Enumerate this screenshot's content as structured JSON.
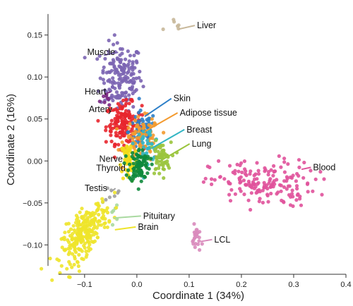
{
  "chart_data": {
    "type": "scatter",
    "xlabel": "Coordinate 1 (34%)",
    "ylabel": "Coordinate 2 (16%)",
    "xlim": [
      -0.17,
      0.4
    ],
    "ylim": [
      -0.135,
      0.185
    ],
    "x_ticks": [
      -0.1,
      0.0,
      0.1,
      0.2,
      0.3,
      0.4
    ],
    "x_tick_labels": [
      "−0.1",
      "0.0",
      "0.1",
      "0.2",
      "0.3",
      "0.4"
    ],
    "y_ticks": [
      -0.1,
      -0.05,
      0.0,
      0.05,
      0.1,
      0.15
    ],
    "y_tick_labels": [
      "−0.10",
      "−0.05",
      "0.00",
      "0.05",
      "0.10",
      "0.15"
    ],
    "grid": false,
    "legend": "none (direct labels)",
    "groups": [
      {
        "name": "Liver",
        "color": "#c8b89a",
        "n": 6,
        "center": [
          0.075,
          0.16
        ],
        "spread": [
          0.012,
          0.006
        ]
      },
      {
        "name": "Muscle",
        "color": "#7b64b3",
        "n": 170,
        "center": [
          -0.03,
          0.1
        ],
        "spread": [
          0.02,
          0.02
        ]
      },
      {
        "name": "Heart",
        "color": "#7b2a84",
        "n": 8,
        "center": [
          -0.06,
          0.075
        ],
        "spread": [
          0.008,
          0.004
        ]
      },
      {
        "name": "Artery",
        "color": "#e8262d",
        "n": 150,
        "center": [
          -0.025,
          0.045
        ],
        "spread": [
          0.017,
          0.012
        ]
      },
      {
        "name": "Skin",
        "color": "#2d7fc8",
        "n": 70,
        "center": [
          0.01,
          0.035
        ],
        "spread": [
          0.013,
          0.012
        ]
      },
      {
        "name": "Adipose tissue",
        "color": "#f39a2f",
        "n": 90,
        "center": [
          0.01,
          0.025
        ],
        "spread": [
          0.017,
          0.013
        ]
      },
      {
        "name": "Breast",
        "color": "#34b6c4",
        "n": 40,
        "center": [
          0.02,
          0.02
        ],
        "spread": [
          0.012,
          0.01
        ]
      },
      {
        "name": "Lung",
        "color": "#9ac43c",
        "n": 60,
        "center": [
          0.045,
          0.002
        ],
        "spread": [
          0.01,
          0.01
        ]
      },
      {
        "name": "Nerve",
        "color": "#f2dc18",
        "n": 60,
        "center": [
          -0.015,
          0.0
        ],
        "spread": [
          0.008,
          0.013
        ]
      },
      {
        "name": "Thyroid",
        "color": "#0e8a3c",
        "n": 90,
        "center": [
          0.005,
          -0.005
        ],
        "spread": [
          0.01,
          0.01
        ]
      },
      {
        "name": "Blood",
        "color": "#e0529b",
        "n": 170,
        "center": [
          0.24,
          -0.027
        ],
        "spread": [
          0.05,
          0.014
        ]
      },
      {
        "name": "Testis",
        "color": "#a0a0a0",
        "n": 8,
        "center": [
          -0.045,
          -0.04
        ],
        "spread": [
          0.009,
          0.007
        ]
      },
      {
        "name": "Pituitary",
        "color": "#a9d9a0",
        "n": 6,
        "center": [
          -0.05,
          -0.063
        ],
        "spread": [
          0.007,
          0.005
        ]
      },
      {
        "name": "Brain",
        "color": "#eee42a",
        "n": 260,
        "center": [
          -0.1,
          -0.085
        ],
        "spread": [
          0.022,
          0.013
        ]
      },
      {
        "name": "LCL",
        "color": "#d98bbc",
        "n": 25,
        "center": [
          0.114,
          -0.093
        ],
        "spread": [
          0.004,
          0.008
        ]
      }
    ],
    "annotations": [
      {
        "text": "Liver",
        "point": [
          0.08,
          0.157
        ],
        "label": [
          0.115,
          0.158
        ]
      },
      {
        "text": "Muscle",
        "point": [
          -0.063,
          0.126
        ],
        "label": [
          -0.095,
          0.126
        ]
      },
      {
        "text": "Heart",
        "point": [
          -0.06,
          0.08
        ],
        "label": [
          -0.1,
          0.079
        ]
      },
      {
        "text": "Artery",
        "point": [
          -0.058,
          0.058
        ],
        "label": [
          -0.092,
          0.058
        ]
      },
      {
        "text": "Skin",
        "point": [
          0.015,
          0.053
        ],
        "label": [
          0.07,
          0.071
        ]
      },
      {
        "text": "Adipose tissue",
        "point": [
          0.015,
          0.035
        ],
        "label": [
          0.082,
          0.054
        ]
      },
      {
        "text": "Breast",
        "point": [
          0.028,
          0.015
        ],
        "label": [
          0.095,
          0.034
        ]
      },
      {
        "text": "Lung",
        "point": [
          0.042,
          -0.001
        ],
        "label": [
          0.105,
          0.017
        ]
      },
      {
        "text": "Nerve",
        "point": [
          -0.02,
          -0.001
        ],
        "label": [
          -0.072,
          -0.001
        ]
      },
      {
        "text": "Thyroid",
        "point": [
          -0.005,
          -0.012
        ],
        "label": [
          -0.078,
          -0.012
        ]
      },
      {
        "text": "Blood",
        "point": [
          0.315,
          -0.01
        ],
        "label": [
          0.337,
          -0.011
        ]
      },
      {
        "text": "Testis",
        "point": [
          -0.05,
          -0.037
        ],
        "label": [
          -0.1,
          -0.036
        ]
      },
      {
        "text": "Pituitary",
        "point": [
          -0.045,
          -0.068
        ],
        "label": [
          0.012,
          -0.069
        ]
      },
      {
        "text": "Brain",
        "point": [
          -0.042,
          -0.082
        ],
        "label": [
          0.002,
          -0.082
        ]
      },
      {
        "text": "LCL",
        "point": [
          0.122,
          -0.096
        ],
        "label": [
          0.148,
          -0.097
        ]
      }
    ]
  }
}
